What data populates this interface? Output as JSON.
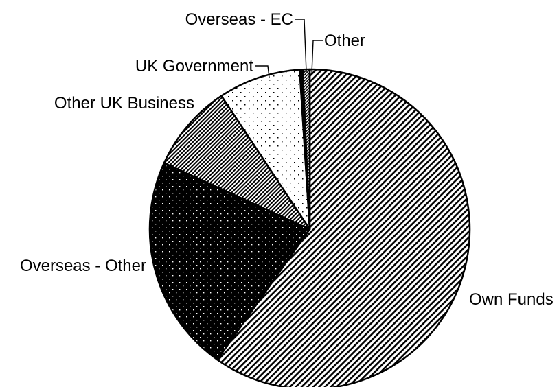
{
  "chart_data": {
    "type": "pie",
    "title": "",
    "legend": "none",
    "slices": [
      {
        "name": "Own Funds",
        "value": 59.8,
        "pattern": "hatch-diagonal"
      },
      {
        "name": "Overseas - Other",
        "value": 22.0,
        "pattern": "dots-on-black"
      },
      {
        "name": "Other UK Business",
        "value": 8.9,
        "pattern": "hatch-dense"
      },
      {
        "name": "UK Government",
        "value": 8.3,
        "pattern": "dots-on-white"
      },
      {
        "name": "Overseas - EC",
        "value": 0.3,
        "pattern": "solid-black"
      },
      {
        "name": "Other",
        "value": 0.7,
        "pattern": "hatch-fine"
      }
    ]
  }
}
